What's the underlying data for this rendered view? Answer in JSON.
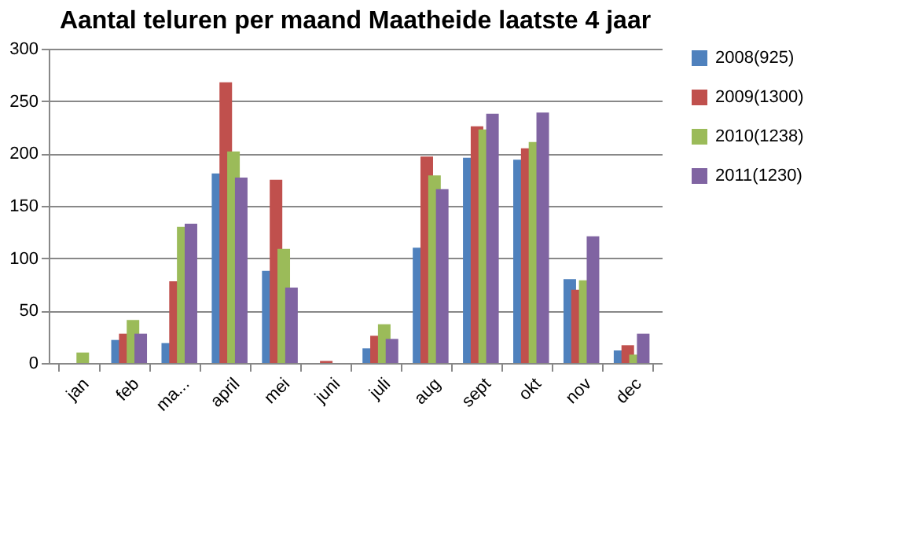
{
  "chart_data": {
    "type": "bar",
    "title": "Aantal teluren per maand Maatheide laatste 4 jaar",
    "categories": [
      "jan",
      "feb",
      "ma...",
      "april",
      "mei",
      "juni",
      "juli",
      "aug",
      "sept",
      "okt",
      "nov",
      "dec"
    ],
    "series": [
      {
        "name": "2008(925)",
        "color": "#4f81bd",
        "values": [
          0,
          22,
          19,
          181,
          88,
          0,
          14,
          110,
          196,
          194,
          80,
          12
        ]
      },
      {
        "name": "2009(1300)",
        "color": "#c0504d",
        "values": [
          0,
          28,
          78,
          268,
          175,
          2,
          26,
          197,
          226,
          205,
          70,
          17
        ]
      },
      {
        "name": "2010(1238)",
        "color": "#9bbb59",
        "values": [
          10,
          41,
          130,
          202,
          109,
          0,
          37,
          179,
          223,
          211,
          79,
          8
        ]
      },
      {
        "name": "2011(1230)",
        "color": "#8064a2",
        "values": [
          0,
          28,
          133,
          177,
          72,
          0,
          23,
          166,
          238,
          239,
          121,
          28
        ]
      }
    ],
    "ylim": [
      0,
      300
    ],
    "yticks": [
      0,
      50,
      100,
      150,
      200,
      250,
      300
    ],
    "grid": "y",
    "legend": "right"
  }
}
